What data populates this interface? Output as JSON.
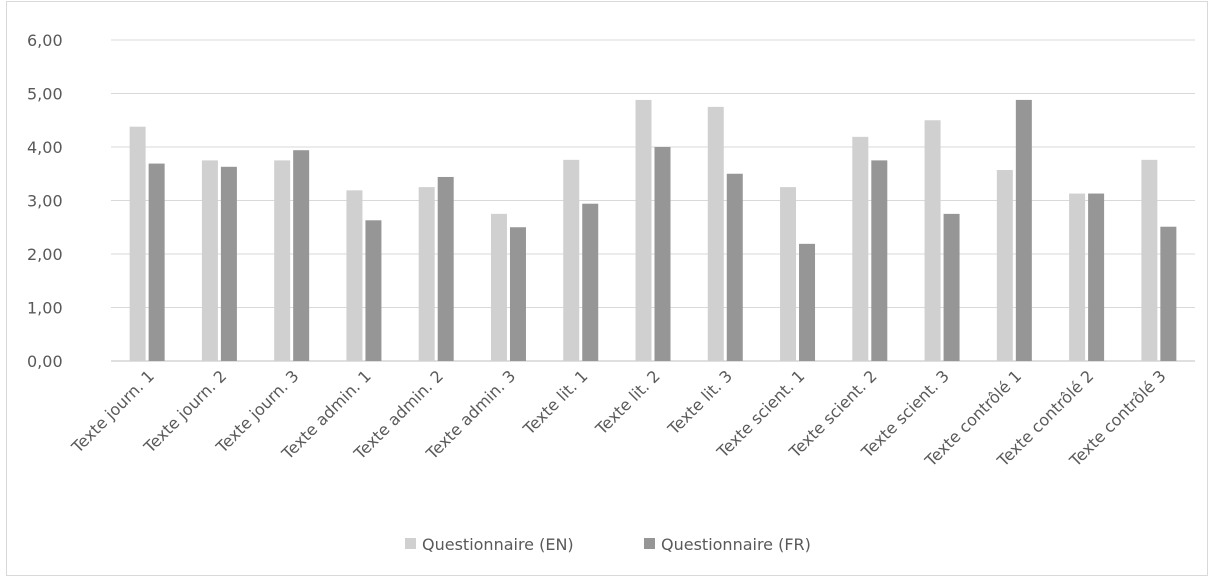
{
  "chart_data": {
    "type": "bar",
    "title": "",
    "xlabel": "",
    "ylabel": "",
    "ylim": [
      0,
      6
    ],
    "ytick_labels": [
      "0,00",
      "1,00",
      "2,00",
      "3,00",
      "4,00",
      "5,00",
      "6,00"
    ],
    "grid": true,
    "legend_position": "bottom",
    "categories": [
      "Texte journ. 1",
      "Texte journ. 2",
      "Texte journ. 3",
      "Texte admin. 1",
      "Texte admin. 2",
      "Texte admin. 3",
      "Texte lit. 1",
      "Texte lit. 2",
      "Texte lit. 3",
      "Texte scient. 1",
      "Texte scient. 2",
      "Texte scient. 3",
      "Texte contrôlé 1",
      "Texte contrôlé 2",
      "Texte contrôlé 3"
    ],
    "series": [
      {
        "name": "Questionnaire (EN)",
        "color": "#d0d0d0",
        "values": [
          4.38,
          3.75,
          3.75,
          3.19,
          3.25,
          2.75,
          3.76,
          4.88,
          4.75,
          3.25,
          4.19,
          4.5,
          3.57,
          3.13,
          3.76
        ]
      },
      {
        "name": "Questionnaire (FR)",
        "color": "#969696",
        "values": [
          3.69,
          3.63,
          3.94,
          2.63,
          3.44,
          2.5,
          2.94,
          4.0,
          3.5,
          2.19,
          3.75,
          2.75,
          4.88,
          3.13,
          2.51
        ]
      }
    ]
  }
}
